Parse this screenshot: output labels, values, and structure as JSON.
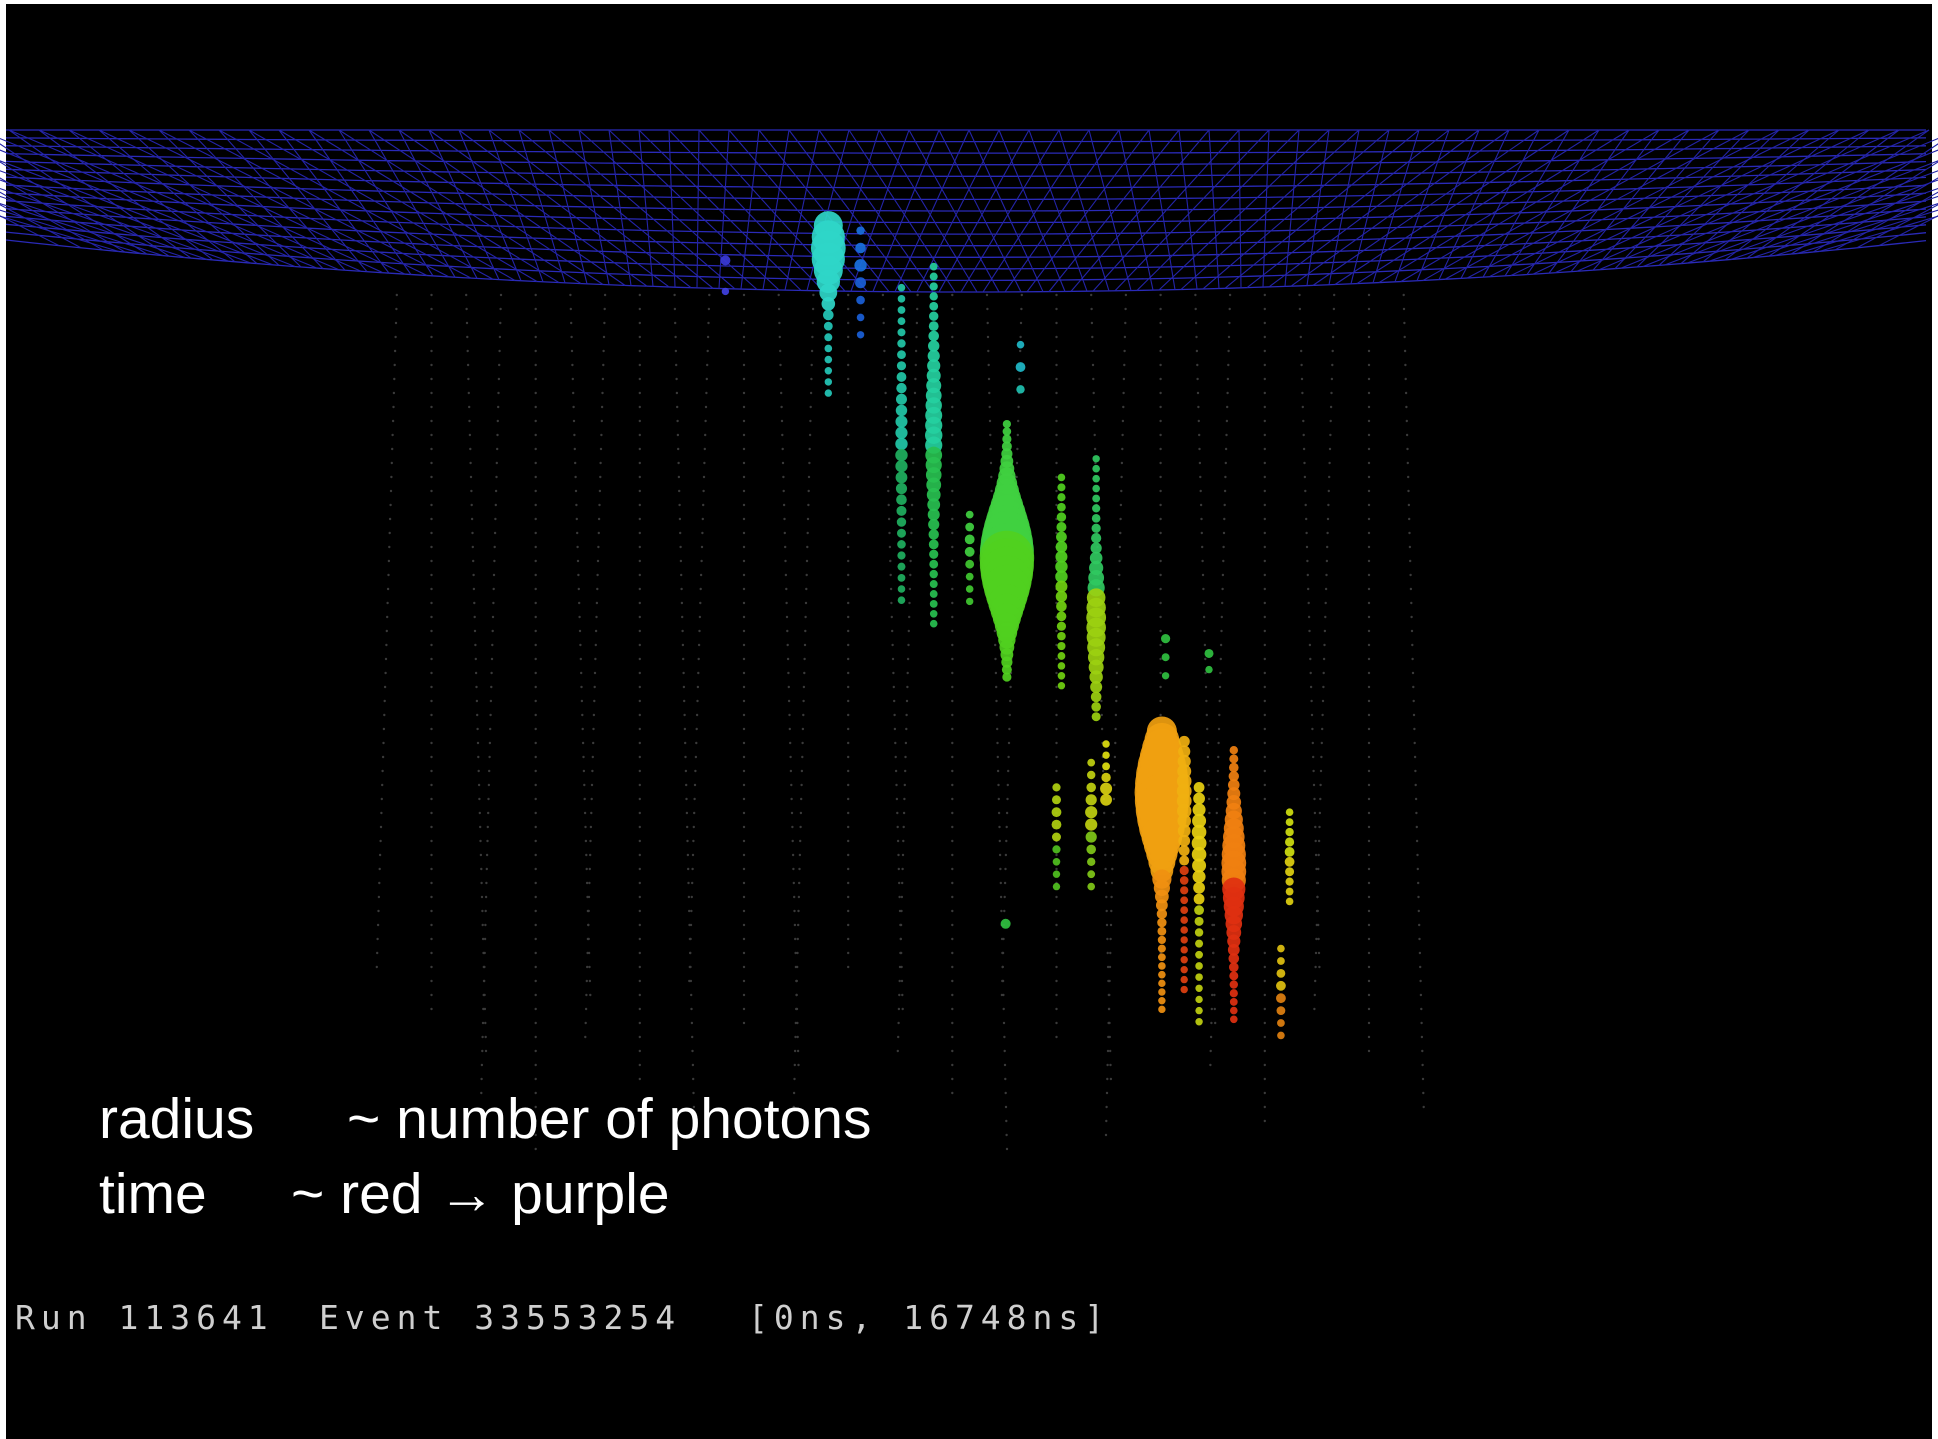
{
  "legend": {
    "lines": [
      {
        "label": "radius",
        "description": "~ number of photons"
      },
      {
        "label": "time",
        "description": "~ red → purple"
      }
    ]
  },
  "footer": {
    "run": "Run 113641",
    "event": "Event 33553254",
    "range": "[0ns, 16748ns]"
  }
}
